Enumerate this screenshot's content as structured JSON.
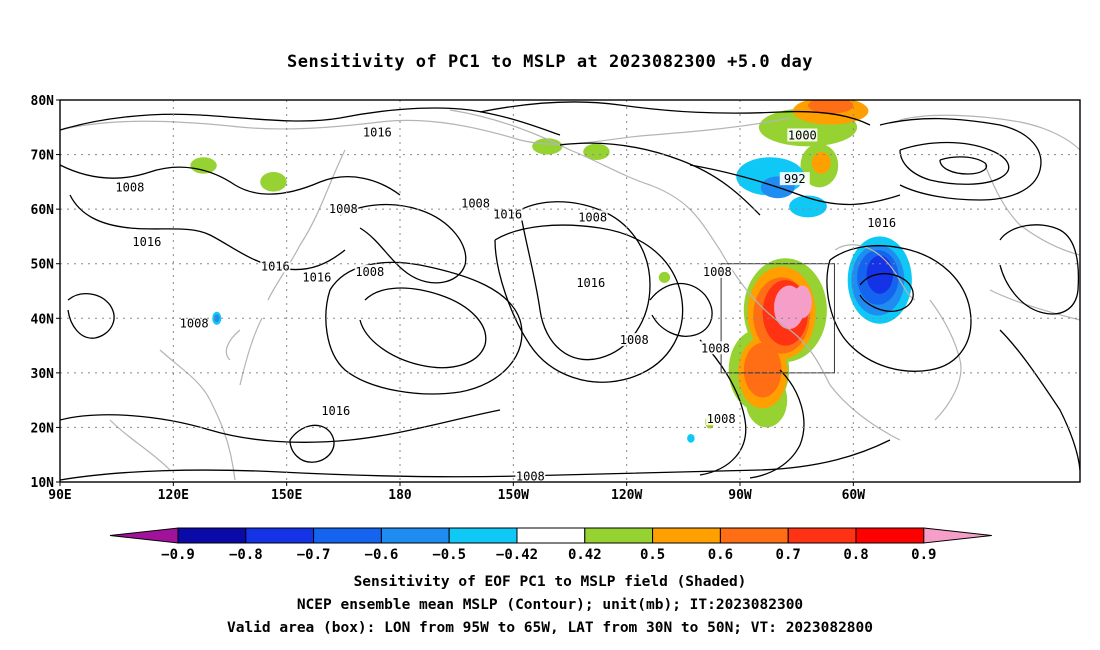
{
  "title": "Sensitivity of PC1 to MSLP at 2023082300 +5.0 day",
  "map": {
    "lat_axis": [
      "80N",
      "70N",
      "60N",
      "50N",
      "40N",
      "30N",
      "20N",
      "10N"
    ],
    "lon_axis": [
      "90E",
      "120E",
      "150E",
      "180",
      "150W",
      "120W",
      "90W",
      "60W"
    ],
    "contour_labels": [
      {
        "text": "1016",
        "lon": 174.0,
        "lat": 74.0
      },
      {
        "text": "1008",
        "lon": 108.5,
        "lat": 64.0
      },
      {
        "text": "1008",
        "lon": 165.0,
        "lat": 60.0
      },
      {
        "text": "1016",
        "lon": 113.0,
        "lat": 54.0
      },
      {
        "text": "1016",
        "lon": 147.0,
        "lat": 49.5
      },
      {
        "text": "1016",
        "lon": 158.0,
        "lat": 47.5
      },
      {
        "text": "1008",
        "lon": 172.0,
        "lat": 48.5
      },
      {
        "text": "1008",
        "lon": -160.0,
        "lat": 61.0
      },
      {
        "text": "1016",
        "lon": -151.5,
        "lat": 59.0
      },
      {
        "text": "1008",
        "lon": -129.0,
        "lat": 58.5
      },
      {
        "text": "1016",
        "lon": -129.5,
        "lat": 46.5
      },
      {
        "text": "1008",
        "lon": -118.0,
        "lat": 36.0
      },
      {
        "text": "1008",
        "lon": -96.0,
        "lat": 48.5
      },
      {
        "text": "1008",
        "lon": -96.5,
        "lat": 34.5
      },
      {
        "text": "1008",
        "lon": -95.0,
        "lat": 21.5
      },
      {
        "text": "1008",
        "lon": -145.5,
        "lat": 11.0
      },
      {
        "text": "1016",
        "lon": 163.0,
        "lat": 23.0
      },
      {
        "text": "1008",
        "lon": 125.5,
        "lat": 39.0
      },
      {
        "text": "1000",
        "lon": -73.5,
        "lat": 73.5
      },
      {
        "text": "992",
        "lon": -75.5,
        "lat": 65.5
      },
      {
        "text": "1016",
        "lon": -52.5,
        "lat": 57.5
      }
    ],
    "valid_box": {
      "lon_west": -95,
      "lon_east": -65,
      "lat_south": 30,
      "lat_north": 50
    },
    "sensitivity_blobs": [
      {
        "lon": -78.0,
        "lat": 41.5,
        "rx": 11.0,
        "ry": 9.5,
        "level": "0.5"
      },
      {
        "lon": -85.0,
        "lat": 30.5,
        "rx": 8.0,
        "ry": 7.5,
        "level": "0.5"
      },
      {
        "lon": -83.0,
        "lat": 25.0,
        "rx": 5.5,
        "ry": 5.0,
        "level": "0.5"
      },
      {
        "lon": -79.0,
        "lat": 41.0,
        "rx": 9.0,
        "ry": 8.5,
        "level": "0.6"
      },
      {
        "lon": -84.0,
        "lat": 30.0,
        "rx": 6.5,
        "ry": 6.5,
        "level": "0.6"
      },
      {
        "lon": -79.0,
        "lat": 40.5,
        "rx": 7.5,
        "ry": 7.0,
        "level": "0.7"
      },
      {
        "lon": -84.0,
        "lat": 30.5,
        "rx": 5.0,
        "ry": 5.0,
        "level": "0.7"
      },
      {
        "lon": -78.0,
        "lat": 41.0,
        "rx": 6.0,
        "ry": 6.0,
        "level": "0.8"
      },
      {
        "lon": -77.0,
        "lat": 42.0,
        "rx": 4.0,
        "ry": 4.0,
        "level": "0.9"
      },
      {
        "lon": -73.5,
        "lat": 43.0,
        "rx": 2.5,
        "ry": 3.0,
        "level": "0.9"
      },
      {
        "lon": -72.0,
        "lat": 75.0,
        "rx": 13.0,
        "ry": 3.5,
        "level": "0.5"
      },
      {
        "lon": -69.0,
        "lat": 68.0,
        "rx": 5.0,
        "ry": 4.0,
        "level": "0.5"
      },
      {
        "lon": -66.0,
        "lat": 78.0,
        "rx": 10.0,
        "ry": 2.5,
        "level": "0.6"
      },
      {
        "lon": -66.0,
        "lat": 79.0,
        "rx": 6.0,
        "ry": 1.5,
        "level": "0.7"
      },
      {
        "lon": -68.5,
        "lat": 68.5,
        "rx": 2.5,
        "ry": 2.0,
        "level": "0.6"
      },
      {
        "lon": 128.0,
        "lat": 68.0,
        "rx": 3.5,
        "ry": 1.5,
        "level": "0.5"
      },
      {
        "lon": 146.5,
        "lat": 65.0,
        "rx": 3.5,
        "ry": 1.8,
        "level": "0.5"
      },
      {
        "lon": -141.0,
        "lat": 71.5,
        "rx": 4.0,
        "ry": 1.5,
        "level": "0.5"
      },
      {
        "lon": -128.0,
        "lat": 70.5,
        "rx": 3.5,
        "ry": 1.5,
        "level": "0.5"
      },
      {
        "lon": -110.0,
        "lat": 47.5,
        "rx": 1.5,
        "ry": 1.0,
        "level": "0.5"
      },
      {
        "lon": -98.0,
        "lat": 21.0,
        "rx": 1.2,
        "ry": 1.2,
        "level": "0.5"
      },
      {
        "lon": -98.0,
        "lat": 21.0,
        "rx": 0.7,
        "ry": 0.8,
        "level": "0.6"
      },
      {
        "lon": -82.0,
        "lat": 66.0,
        "rx": 9.0,
        "ry": 3.5,
        "level": "-0.42"
      },
      {
        "lon": -72.0,
        "lat": 60.5,
        "rx": 5.0,
        "ry": 2.0,
        "level": "-0.42"
      },
      {
        "lon": -80.0,
        "lat": 64.0,
        "rx": 4.5,
        "ry": 2.0,
        "level": "-0.5"
      },
      {
        "lon": -53.0,
        "lat": 47.0,
        "rx": 8.5,
        "ry": 8.0,
        "level": "-0.42"
      },
      {
        "lon": -53.5,
        "lat": 47.0,
        "rx": 7.0,
        "ry": 6.5,
        "level": "-0.5"
      },
      {
        "lon": -53.5,
        "lat": 47.5,
        "rx": 5.5,
        "ry": 5.0,
        "level": "-0.6"
      },
      {
        "lon": -53.0,
        "lat": 48.0,
        "rx": 3.5,
        "ry": 3.5,
        "level": "-0.7"
      },
      {
        "lon": 131.5,
        "lat": 40.0,
        "rx": 1.2,
        "ry": 1.2,
        "level": "-0.42"
      },
      {
        "lon": 131.5,
        "lat": 40.0,
        "rx": 0.7,
        "ry": 0.7,
        "level": "-0.5"
      },
      {
        "lon": -103.0,
        "lat": 18.0,
        "rx": 1.0,
        "ry": 0.8,
        "level": "-0.42"
      }
    ]
  },
  "colorbar": {
    "labels": [
      "−0.9",
      "−0.8",
      "−0.7",
      "−0.6",
      "−0.5",
      "−0.42",
      "0.42",
      "0.5",
      "0.6",
      "0.7",
      "0.8",
      "0.9"
    ],
    "colors": [
      "#a0129a",
      "#0a0aa8",
      "#1432e6",
      "#1464f0",
      "#1e8cf0",
      "#10c8f5",
      "#ffffff",
      "#96d232",
      "#ffa000",
      "#ff6e14",
      "#ff3214",
      "#ff0000",
      "#f59ec8"
    ]
  },
  "captions": {
    "line1": "Sensitivity of EOF PC1 to MSLP field (Shaded)",
    "line2": "NCEP ensemble mean MSLP (Contour); unit(mb); IT:2023082300",
    "line3": "Valid area (box): LON from 95W to 65W, LAT from 30N to 50N; VT: 2023082800"
  }
}
